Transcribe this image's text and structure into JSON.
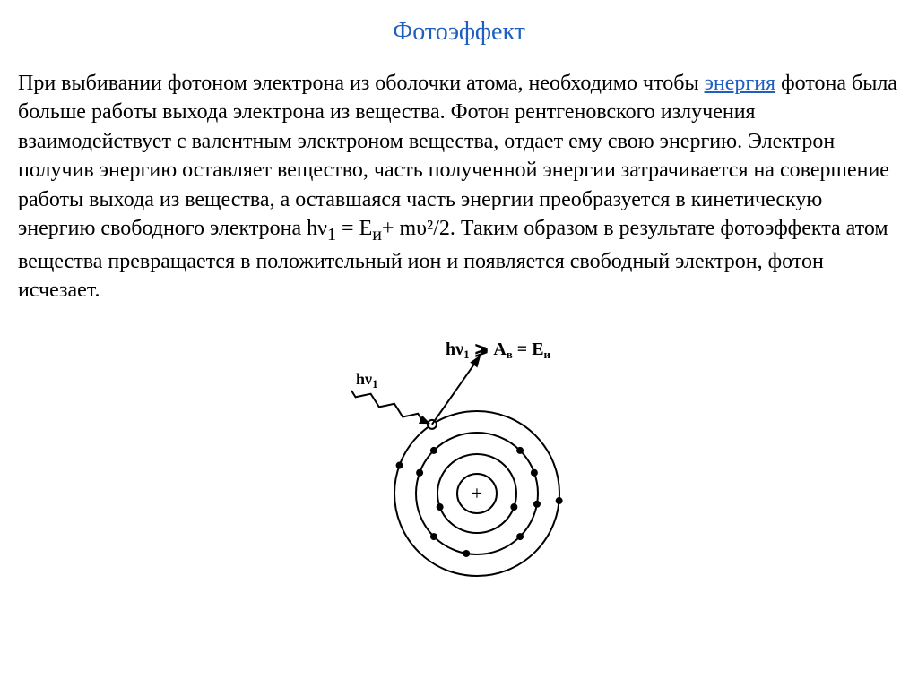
{
  "title": "Фотоэффект",
  "paragraph": {
    "part1": "При выбивании фотоном электрона из оболочки атома, необходимо чтобы ",
    "link": "энергия",
    "part2": " фотона была больше работы выхода электрона из вещества. Фотон рентгеновского излучения взаимодействует с валентным электроном вещества, отдает ему свою энергию. Электрон получив энергию оставляет вещество, часть полученной энергии затрачивается на совершение работы выхода из вещества, а оставшаяся часть энергии преобразуется в кинетическую энергию свободного электрона hν",
    "sub1": "1",
    "part3": " = E",
    "sub2": "и",
    "part4": "+ mυ²/2. Таким образом в результате фотоэффекта атом вещества превращается в положительный ион и появляется свободный электрон, фотон исчезает."
  },
  "diagram": {
    "formula_full": "hν₁ ⩾ Aв = Eи",
    "photon_label": "hν₁",
    "nucleus_sign": "+",
    "circles": [
      {
        "r": 22,
        "stroke": "#000000",
        "stroke_width": 2
      },
      {
        "r": 44,
        "stroke": "#000000",
        "stroke_width": 2
      },
      {
        "r": 68,
        "stroke": "#000000",
        "stroke_width": 2
      },
      {
        "r": 92,
        "stroke": "#000000",
        "stroke_width": 2
      }
    ],
    "electron_radius": 4,
    "electron_color": "#000000",
    "electrons_shell2_angles": [
      200,
      340
    ],
    "electrons_shell3_angles": [
      45,
      135,
      225,
      260,
      315,
      20,
      160,
      350
    ],
    "electrons_shell4_angles": [
      355,
      160
    ],
    "hit_angle_deg": 123,
    "eject_angle_deg": 55,
    "background": "#ffffff"
  }
}
